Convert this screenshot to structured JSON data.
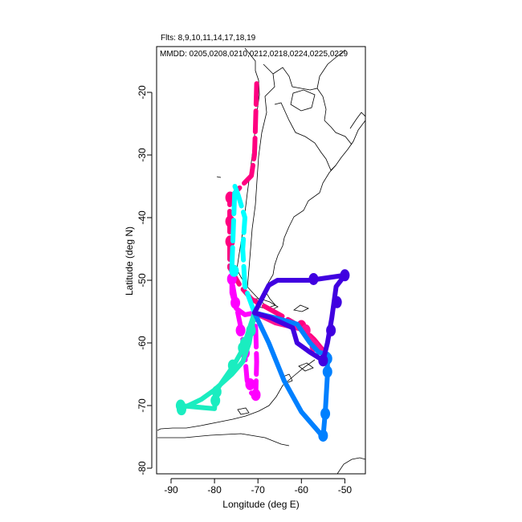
{
  "header": {
    "flights_line": "Flts: 8,9,10,11,14,17,18,19",
    "dates_line": "MMDD: 0205,0208,0210,0212,0218,0224,0225,0229"
  },
  "chart_data": {
    "type": "line",
    "xlabel": "Longitude (deg E)",
    "ylabel": "Latitude (deg N)",
    "xlim": [
      -95,
      -45
    ],
    "ylim": [
      -81,
      -12
    ],
    "xticks": [
      -90,
      -80,
      -70,
      -60,
      -50
    ],
    "yticks": [
      -20,
      -30,
      -40,
      -50,
      -60,
      -70,
      -80
    ],
    "xtick_labels": [
      "-90",
      "-80",
      "-70",
      "-60",
      "-50"
    ],
    "ytick_labels": [
      "-20",
      "-30",
      "-40",
      "-50",
      "-60",
      "-70",
      "-80"
    ],
    "grid": false,
    "series": [
      {
        "color": "#ff0080",
        "dashed": true,
        "path": [
          [
            -70.3,
            -18.6
          ],
          [
            -70.6,
            -26
          ],
          [
            -70.8,
            -30
          ],
          [
            -71.5,
            -33.3
          ],
          [
            -75,
            -35.8
          ],
          [
            -76.5,
            -37
          ],
          [
            -76.5,
            -41
          ],
          [
            -76.5,
            -44
          ],
          [
            -76.5,
            -48
          ],
          [
            -74,
            -51
          ],
          [
            -71.5,
            -53
          ],
          [
            -65,
            -55.5
          ],
          [
            -60,
            -57.5
          ],
          [
            -57,
            -59.5
          ],
          [
            -55,
            -61.2
          ]
        ],
        "markers": [
          [
            -76.4,
            -36.8
          ],
          [
            -76.4,
            -40.6
          ],
          [
            -76.4,
            -43.8
          ],
          [
            -60,
            -57.3
          ]
        ]
      },
      {
        "color": "#ff1493",
        "dashed": false,
        "path": [
          [
            -70.8,
            -55.2
          ],
          [
            -66,
            -56.8
          ],
          [
            -60,
            -57.8
          ],
          [
            -57,
            -60
          ],
          [
            -55,
            -61.5
          ]
        ],
        "markers": [
          [
            -59,
            -58
          ],
          [
            -57,
            -60.5
          ]
        ]
      },
      {
        "color": "#ff00ff",
        "dashed": true,
        "path": [
          [
            -70.8,
            -55.2
          ],
          [
            -73,
            -55.5
          ],
          [
            -75,
            -54.5
          ],
          [
            -76,
            -52
          ],
          [
            -76,
            -50
          ],
          [
            -75,
            -54
          ],
          [
            -73.8,
            -58
          ],
          [
            -73,
            -62
          ],
          [
            -72.5,
            -66
          ],
          [
            -71.5,
            -68
          ],
          [
            -70.5,
            -68.5
          ],
          [
            -70.3,
            -63
          ],
          [
            -70.5,
            -58
          ],
          [
            -70.8,
            -55.2
          ]
        ],
        "markers": [
          [
            -76,
            -49.8
          ],
          [
            -75.2,
            -53.6
          ],
          [
            -74,
            -58
          ],
          [
            -73,
            -61.6
          ],
          [
            -71.8,
            -66.6
          ],
          [
            -70.5,
            -68.3
          ]
        ]
      },
      {
        "color": "#00ffff",
        "dashed": true,
        "path": [
          [
            -70.8,
            -55.2
          ],
          [
            -73,
            -51
          ],
          [
            -73.5,
            -45
          ],
          [
            -73,
            -40
          ],
          [
            -74.5,
            -36.5
          ],
          [
            -75.3,
            -35
          ],
          [
            -76,
            -48
          ]
        ],
        "markers": [
          [
            -75.5,
            -48.5
          ]
        ]
      },
      {
        "color": "#1aedc0",
        "dashed": false,
        "path": [
          [
            -70.8,
            -55.2
          ],
          [
            -71.5,
            -58
          ],
          [
            -72,
            -60
          ],
          [
            -73.5,
            -63
          ],
          [
            -76,
            -65
          ],
          [
            -80,
            -67.5
          ],
          [
            -83,
            -69
          ],
          [
            -86,
            -70
          ],
          [
            -88,
            -70.5
          ],
          [
            -88,
            -70
          ],
          [
            -80,
            -70.5
          ],
          [
            -79.5,
            -67.5
          ],
          [
            -75.5,
            -63.5
          ],
          [
            -73.5,
            -61
          ],
          [
            -70.8,
            -55.2
          ]
        ],
        "markers": [
          [
            -71.6,
            -58
          ],
          [
            -73.5,
            -60.8
          ],
          [
            -75.8,
            -63.6
          ],
          [
            -79.5,
            -67.8
          ],
          [
            -79.8,
            -69.2
          ],
          [
            -87.6,
            -70.6
          ],
          [
            -87.8,
            -70
          ],
          [
            -73,
            -60
          ]
        ]
      },
      {
        "color": "#0080ff",
        "dashed": false,
        "path": [
          [
            -70.8,
            -55.2
          ],
          [
            -67.5,
            -60
          ],
          [
            -64,
            -66
          ],
          [
            -60,
            -71
          ],
          [
            -55,
            -75
          ],
          [
            -54.5,
            -71
          ],
          [
            -54,
            -65
          ],
          [
            -54,
            -61.8
          ],
          [
            -56,
            -61.5
          ],
          [
            -58,
            -60
          ],
          [
            -61,
            -57
          ],
          [
            -66,
            -56
          ],
          [
            -70.8,
            -55.2
          ]
        ],
        "markers": [
          [
            -55,
            -74.8
          ],
          [
            -54.5,
            -71.3
          ],
          [
            -54,
            -64.6
          ],
          [
            -54,
            -62.5
          ]
        ]
      },
      {
        "color": "#4000e0",
        "dashed": false,
        "path": [
          [
            -70.8,
            -55.2
          ],
          [
            -67.5,
            -50.8
          ],
          [
            -65.5,
            -50
          ],
          [
            -58,
            -50
          ],
          [
            -50,
            -49.2
          ],
          [
            -52,
            -51
          ],
          [
            -53,
            -56
          ],
          [
            -54,
            -60
          ],
          [
            -55,
            -62.8
          ],
          [
            -58,
            -61.5
          ],
          [
            -61,
            -60
          ],
          [
            -62,
            -57.6
          ],
          [
            -67,
            -56
          ],
          [
            -70.8,
            -55.2
          ]
        ],
        "markers": [
          [
            -50,
            -49.2
          ],
          [
            -51.8,
            -53.5
          ],
          [
            -53.2,
            -58
          ],
          [
            -55,
            -62.8
          ],
          [
            -57.2,
            -49.8
          ]
        ]
      }
    ]
  }
}
